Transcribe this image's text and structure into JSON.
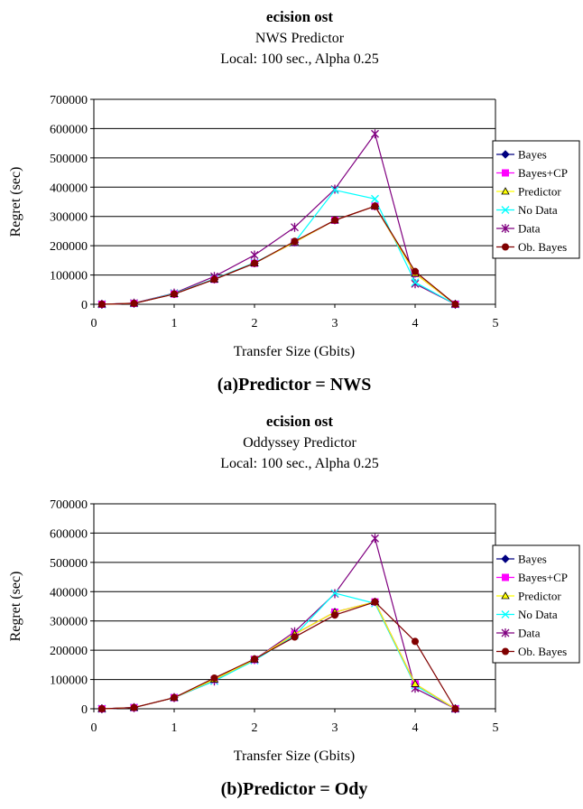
{
  "chart_data": [
    {
      "type": "line",
      "title": "ecision    ost",
      "subtitle1": "NWS Predictor",
      "subtitle2": "Local: 100 sec., Alpha 0.25",
      "xlabel": "Transfer Size (Gbits)",
      "ylabel": "Regret (sec)",
      "caption": "(a)Predictor = NWS",
      "xlim": [
        0,
        5
      ],
      "ylim": [
        0,
        700000
      ],
      "xticks": [
        "0",
        "1",
        "2",
        "3",
        "4",
        "5"
      ],
      "yticks": [
        "0",
        "100000",
        "200000",
        "300000",
        "400000",
        "500000",
        "600000",
        "700000"
      ],
      "grid": "horizontal",
      "legend": "right",
      "x": [
        0.1,
        0.5,
        1,
        1.5,
        2,
        2.5,
        3,
        3.5,
        4,
        4.5
      ],
      "series": [
        {
          "name": "Bayes",
          "color": "#000080",
          "marker": "diamond",
          "values": [
            0,
            3000,
            35000,
            85000,
            140000,
            212000,
            287000,
            335000,
            105000,
            0
          ]
        },
        {
          "name": "Bayes+CP",
          "color": "#ff00ff",
          "marker": "square",
          "values": [
            0,
            3000,
            35000,
            85000,
            140000,
            212000,
            287000,
            335000,
            105000,
            0
          ]
        },
        {
          "name": "Predictor",
          "color": "#ffff00",
          "marker": "triangle",
          "values": [
            0,
            3000,
            35000,
            85000,
            140000,
            212000,
            287000,
            335000,
            105000,
            0
          ]
        },
        {
          "name": "No Data",
          "color": "#00ffff",
          "marker": "x",
          "values": [
            0,
            3000,
            37000,
            87000,
            142000,
            212000,
            390000,
            360000,
            75000,
            0
          ]
        },
        {
          "name": "Data",
          "color": "#800080",
          "marker": "star",
          "values": [
            0,
            4000,
            38000,
            95000,
            168000,
            263000,
            393000,
            582000,
            70000,
            0
          ]
        },
        {
          "name": "Ob. Bayes",
          "color": "#800000",
          "marker": "circle",
          "values": [
            0,
            3000,
            35000,
            85000,
            140000,
            215000,
            287000,
            335000,
            112000,
            0
          ]
        }
      ]
    },
    {
      "type": "line",
      "title": "ecision    ost",
      "subtitle1": "Oddyssey Predictor",
      "subtitle2": "Local: 100 sec., Alpha 0.25",
      "xlabel": "Transfer Size (Gbits)",
      "ylabel": "Regret (sec)",
      "caption": "(b)Predictor = Ody",
      "xlim": [
        0,
        5
      ],
      "ylim": [
        0,
        700000
      ],
      "xticks": [
        "0",
        "1",
        "2",
        "3",
        "4",
        "5"
      ],
      "yticks": [
        "0",
        "100000",
        "200000",
        "300000",
        "400000",
        "500000",
        "600000",
        "700000"
      ],
      "grid": "horizontal",
      "legend": "right",
      "x": [
        0.1,
        0.5,
        1,
        1.5,
        2,
        2.5,
        3,
        3.5,
        4,
        4.5
      ],
      "series": [
        {
          "name": "Bayes",
          "color": "#000080",
          "marker": "diamond",
          "values": [
            0,
            4000,
            38000,
            100000,
            168000,
            255000,
            330000,
            365000,
            85000,
            0
          ]
        },
        {
          "name": "Bayes+CP",
          "color": "#ff00ff",
          "marker": "square",
          "values": [
            0,
            4000,
            38000,
            100000,
            168000,
            255000,
            330000,
            365000,
            85000,
            0
          ]
        },
        {
          "name": "Predictor",
          "color": "#ffff00",
          "marker": "triangle",
          "values": [
            0,
            4000,
            38000,
            100000,
            168000,
            255000,
            330000,
            365000,
            85000,
            0
          ]
        },
        {
          "name": "No Data",
          "color": "#00ffff",
          "marker": "x",
          "values": [
            0,
            4000,
            38000,
            95000,
            165000,
            250000,
            395000,
            360000,
            80000,
            0
          ]
        },
        {
          "name": "Data",
          "color": "#800080",
          "marker": "star",
          "values": [
            0,
            4000,
            38000,
            95000,
            168000,
            263000,
            393000,
            582000,
            70000,
            0
          ]
        },
        {
          "name": "Ob. Bayes",
          "color": "#800000",
          "marker": "circle",
          "values": [
            0,
            4000,
            38000,
            105000,
            170000,
            245000,
            320000,
            365000,
            230000,
            0
          ]
        }
      ]
    }
  ]
}
